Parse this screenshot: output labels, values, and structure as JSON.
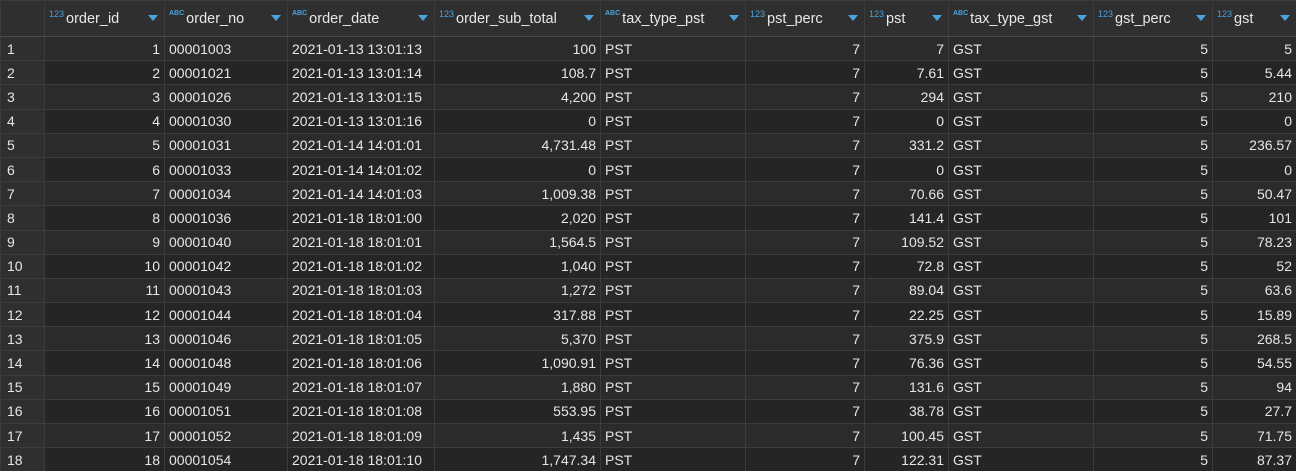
{
  "columns": [
    {
      "name": "order_id",
      "type": "123",
      "align": "num",
      "key": "order_id"
    },
    {
      "name": "order_no",
      "type": "ABC",
      "align": "txt",
      "key": "order_no"
    },
    {
      "name": "order_date",
      "type": "ABC",
      "align": "txt",
      "key": "order_date"
    },
    {
      "name": "order_sub_total",
      "type": "123",
      "align": "num",
      "key": "order_sub_total"
    },
    {
      "name": "tax_type_pst",
      "type": "ABC",
      "align": "txt",
      "key": "tax_type_pst"
    },
    {
      "name": "pst_perc",
      "type": "123",
      "align": "num",
      "key": "pst_perc"
    },
    {
      "name": "pst",
      "type": "123",
      "align": "num",
      "key": "pst"
    },
    {
      "name": "tax_type_gst",
      "type": "ABC",
      "align": "txt",
      "key": "tax_type_gst"
    },
    {
      "name": "gst_perc",
      "type": "123",
      "align": "num",
      "key": "gst_perc"
    },
    {
      "name": "gst",
      "type": "123",
      "align": "num",
      "key": "gst"
    }
  ],
  "rows": [
    {
      "row": "1",
      "order_id": "1",
      "order_no": "00001003",
      "order_date": "2021-01-13 13:01:13",
      "order_sub_total": "100",
      "tax_type_pst": "PST",
      "pst_perc": "7",
      "pst": "7",
      "tax_type_gst": "GST",
      "gst_perc": "5",
      "gst": "5"
    },
    {
      "row": "2",
      "order_id": "2",
      "order_no": "00001021",
      "order_date": "2021-01-13 13:01:14",
      "order_sub_total": "108.7",
      "tax_type_pst": "PST",
      "pst_perc": "7",
      "pst": "7.61",
      "tax_type_gst": "GST",
      "gst_perc": "5",
      "gst": "5.44"
    },
    {
      "row": "3",
      "order_id": "3",
      "order_no": "00001026",
      "order_date": "2021-01-13 13:01:15",
      "order_sub_total": "4,200",
      "tax_type_pst": "PST",
      "pst_perc": "7",
      "pst": "294",
      "tax_type_gst": "GST",
      "gst_perc": "5",
      "gst": "210"
    },
    {
      "row": "4",
      "order_id": "4",
      "order_no": "00001030",
      "order_date": "2021-01-13 13:01:16",
      "order_sub_total": "0",
      "tax_type_pst": "PST",
      "pst_perc": "7",
      "pst": "0",
      "tax_type_gst": "GST",
      "gst_perc": "5",
      "gst": "0"
    },
    {
      "row": "5",
      "order_id": "5",
      "order_no": "00001031",
      "order_date": "2021-01-14 14:01:01",
      "order_sub_total": "4,731.48",
      "tax_type_pst": "PST",
      "pst_perc": "7",
      "pst": "331.2",
      "tax_type_gst": "GST",
      "gst_perc": "5",
      "gst": "236.57"
    },
    {
      "row": "6",
      "order_id": "6",
      "order_no": "00001033",
      "order_date": "2021-01-14 14:01:02",
      "order_sub_total": "0",
      "tax_type_pst": "PST",
      "pst_perc": "7",
      "pst": "0",
      "tax_type_gst": "GST",
      "gst_perc": "5",
      "gst": "0"
    },
    {
      "row": "7",
      "order_id": "7",
      "order_no": "00001034",
      "order_date": "2021-01-14 14:01:03",
      "order_sub_total": "1,009.38",
      "tax_type_pst": "PST",
      "pst_perc": "7",
      "pst": "70.66",
      "tax_type_gst": "GST",
      "gst_perc": "5",
      "gst": "50.47"
    },
    {
      "row": "8",
      "order_id": "8",
      "order_no": "00001036",
      "order_date": "2021-01-18 18:01:00",
      "order_sub_total": "2,020",
      "tax_type_pst": "PST",
      "pst_perc": "7",
      "pst": "141.4",
      "tax_type_gst": "GST",
      "gst_perc": "5",
      "gst": "101"
    },
    {
      "row": "9",
      "order_id": "9",
      "order_no": "00001040",
      "order_date": "2021-01-18 18:01:01",
      "order_sub_total": "1,564.5",
      "tax_type_pst": "PST",
      "pst_perc": "7",
      "pst": "109.52",
      "tax_type_gst": "GST",
      "gst_perc": "5",
      "gst": "78.23"
    },
    {
      "row": "10",
      "order_id": "10",
      "order_no": "00001042",
      "order_date": "2021-01-18 18:01:02",
      "order_sub_total": "1,040",
      "tax_type_pst": "PST",
      "pst_perc": "7",
      "pst": "72.8",
      "tax_type_gst": "GST",
      "gst_perc": "5",
      "gst": "52"
    },
    {
      "row": "11",
      "order_id": "11",
      "order_no": "00001043",
      "order_date": "2021-01-18 18:01:03",
      "order_sub_total": "1,272",
      "tax_type_pst": "PST",
      "pst_perc": "7",
      "pst": "89.04",
      "tax_type_gst": "GST",
      "gst_perc": "5",
      "gst": "63.6"
    },
    {
      "row": "12",
      "order_id": "12",
      "order_no": "00001044",
      "order_date": "2021-01-18 18:01:04",
      "order_sub_total": "317.88",
      "tax_type_pst": "PST",
      "pst_perc": "7",
      "pst": "22.25",
      "tax_type_gst": "GST",
      "gst_perc": "5",
      "gst": "15.89"
    },
    {
      "row": "13",
      "order_id": "13",
      "order_no": "00001046",
      "order_date": "2021-01-18 18:01:05",
      "order_sub_total": "5,370",
      "tax_type_pst": "PST",
      "pst_perc": "7",
      "pst": "375.9",
      "tax_type_gst": "GST",
      "gst_perc": "5",
      "gst": "268.5"
    },
    {
      "row": "14",
      "order_id": "14",
      "order_no": "00001048",
      "order_date": "2021-01-18 18:01:06",
      "order_sub_total": "1,090.91",
      "tax_type_pst": "PST",
      "pst_perc": "7",
      "pst": "76.36",
      "tax_type_gst": "GST",
      "gst_perc": "5",
      "gst": "54.55"
    },
    {
      "row": "15",
      "order_id": "15",
      "order_no": "00001049",
      "order_date": "2021-01-18 18:01:07",
      "order_sub_total": "1,880",
      "tax_type_pst": "PST",
      "pst_perc": "7",
      "pst": "131.6",
      "tax_type_gst": "GST",
      "gst_perc": "5",
      "gst": "94"
    },
    {
      "row": "16",
      "order_id": "16",
      "order_no": "00001051",
      "order_date": "2021-01-18 18:01:08",
      "order_sub_total": "553.95",
      "tax_type_pst": "PST",
      "pst_perc": "7",
      "pst": "38.78",
      "tax_type_gst": "GST",
      "gst_perc": "5",
      "gst": "27.7"
    },
    {
      "row": "17",
      "order_id": "17",
      "order_no": "00001052",
      "order_date": "2021-01-18 18:01:09",
      "order_sub_total": "1,435",
      "tax_type_pst": "PST",
      "pst_perc": "7",
      "pst": "100.45",
      "tax_type_gst": "GST",
      "gst_perc": "5",
      "gst": "71.75"
    },
    {
      "row": "18",
      "order_id": "18",
      "order_no": "00001054",
      "order_date": "2021-01-18 18:01:10",
      "order_sub_total": "1,747.34",
      "tax_type_pst": "PST",
      "pst_perc": "7",
      "pst": "122.31",
      "tax_type_gst": "GST",
      "gst_perc": "5",
      "gst": "87.37"
    }
  ],
  "colors": {
    "background": "#262626",
    "header_bg": "#2f2f2f",
    "type_badge": "#4aa3df",
    "text": "#e6e6e6",
    "grid_line": "#3c3c3c"
  },
  "icons": {
    "numeric_type": "type-123-icon",
    "text_type": "type-abc-icon",
    "sort": "sort-dropdown-icon"
  }
}
